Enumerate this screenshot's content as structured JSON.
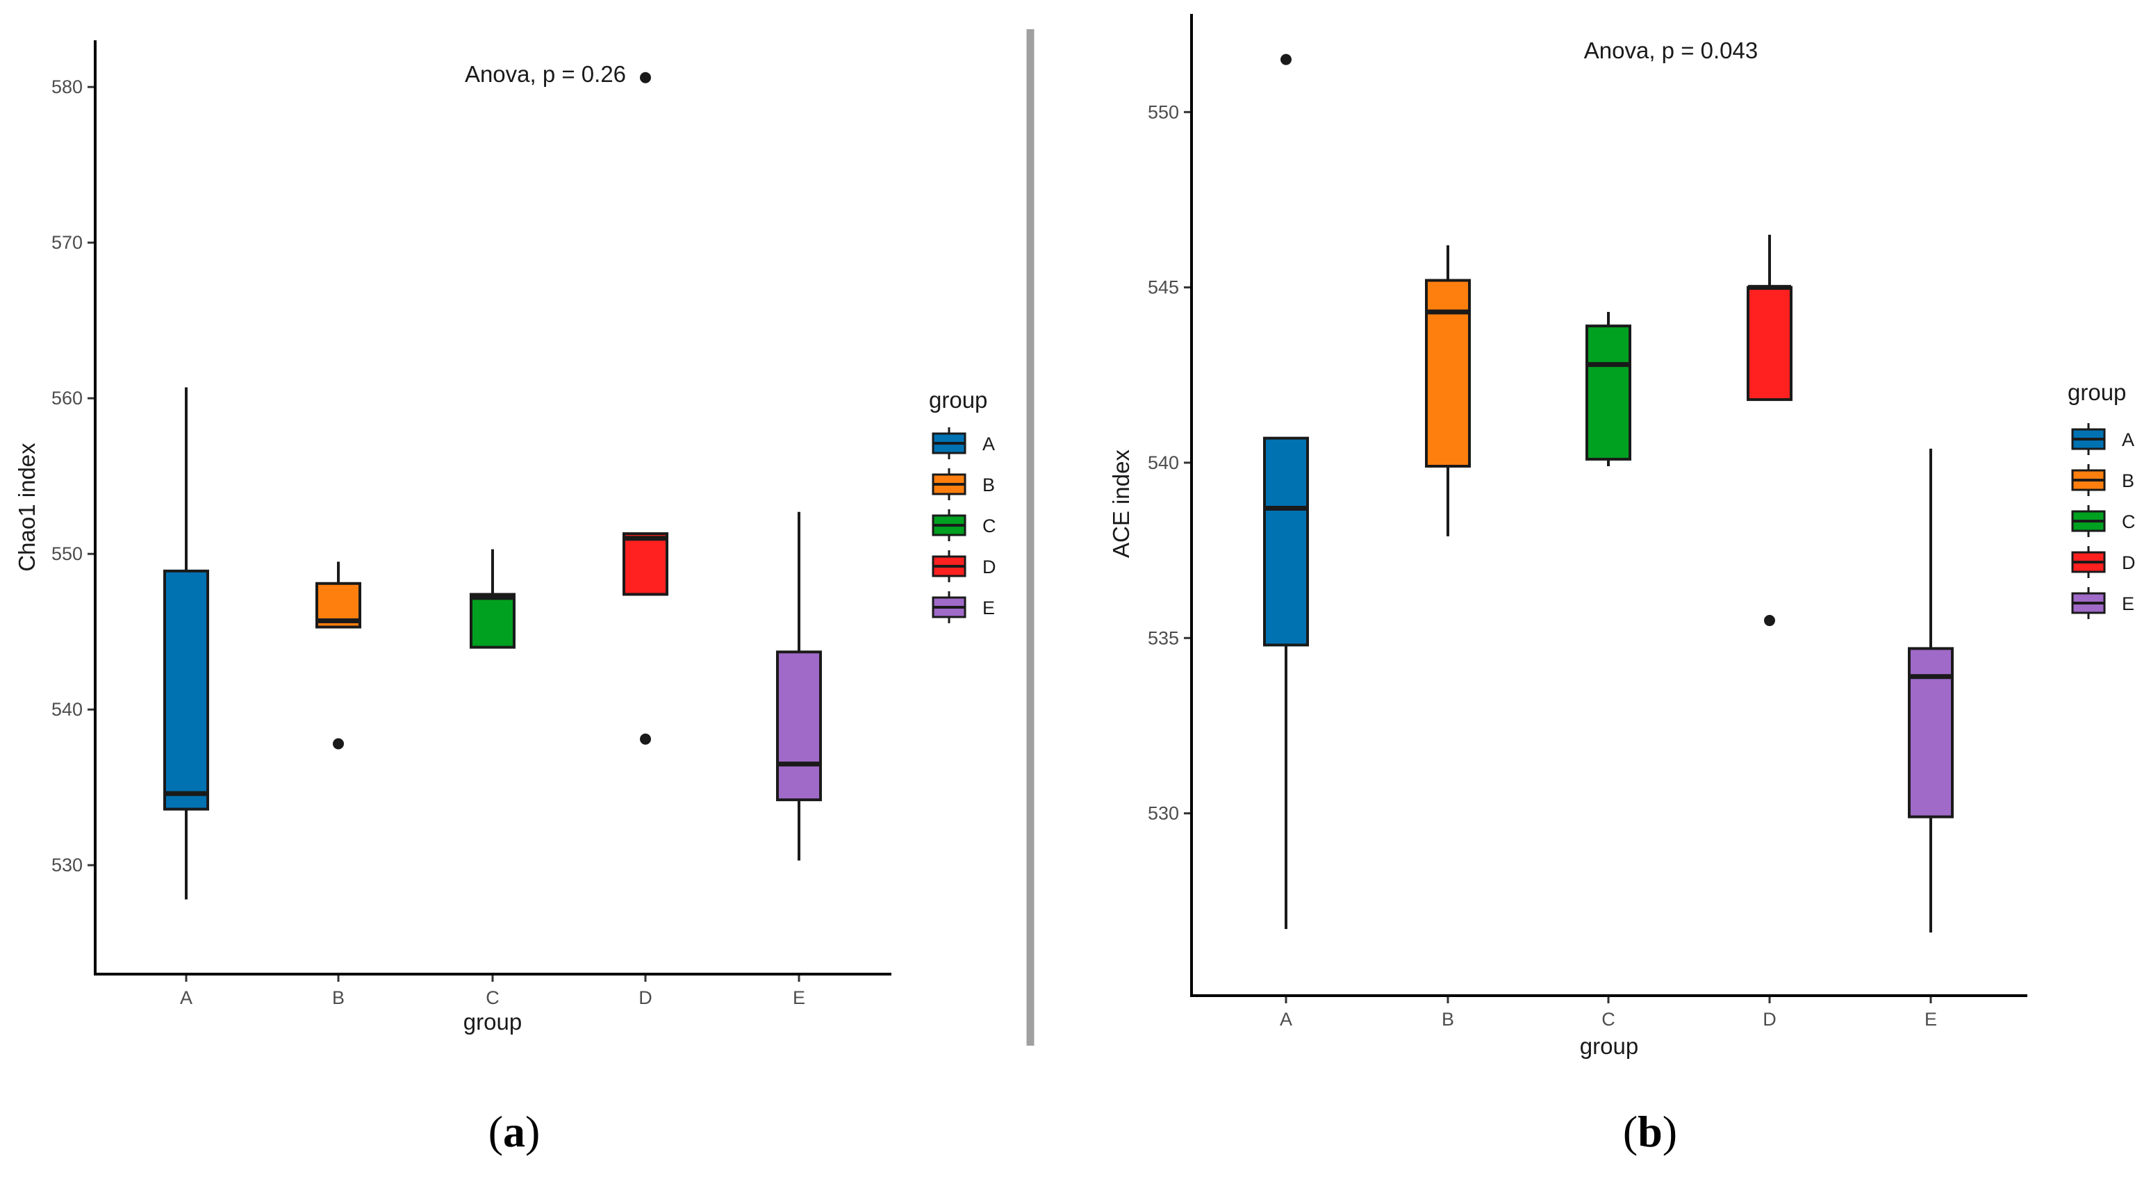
{
  "chart_data": [
    {
      "type": "boxplot",
      "panel_label": "a",
      "annotation": "Anova, p = 0.26",
      "xlabel": "group",
      "ylabel": "Chao1 index",
      "ylim": [
        523,
        583
      ],
      "yticks": [
        530,
        540,
        550,
        560,
        570,
        580
      ],
      "categories": [
        "A",
        "B",
        "C",
        "D",
        "E"
      ],
      "boxes": [
        {
          "group": "A",
          "min": 527.8,
          "q1": 533.6,
          "median": 534.6,
          "q3": 548.9,
          "max": 560.7,
          "outliers": []
        },
        {
          "group": "B",
          "min": 545.3,
          "q1": 545.3,
          "median": 545.7,
          "q3": 548.1,
          "max": 549.5,
          "outliers": [
            537.8
          ]
        },
        {
          "group": "C",
          "min": 544.0,
          "q1": 544.0,
          "median": 547.2,
          "q3": 547.4,
          "max": 550.3,
          "outliers": []
        },
        {
          "group": "D",
          "min": 547.4,
          "q1": 547.4,
          "median": 551.0,
          "q3": 551.3,
          "max": 551.3,
          "outliers": [
            538.1,
            580.6
          ]
        },
        {
          "group": "E",
          "min": 530.3,
          "q1": 534.2,
          "median": 536.5,
          "q3": 543.7,
          "max": 552.7,
          "outliers": []
        }
      ],
      "legend": {
        "title": "group",
        "entries": [
          "A",
          "B",
          "C",
          "D",
          "E"
        ]
      }
    },
    {
      "type": "boxplot",
      "panel_label": "b",
      "annotation": "Anova, p = 0.043",
      "xlabel": "group",
      "ylabel": "ACE index",
      "ylim": [
        524.8,
        552.8
      ],
      "yticks": [
        530,
        535,
        540,
        545,
        550
      ],
      "categories": [
        "A",
        "B",
        "C",
        "D",
        "E"
      ],
      "boxes": [
        {
          "group": "A",
          "min": 526.7,
          "q1": 534.8,
          "median": 538.7,
          "q3": 540.7,
          "max": 540.7,
          "outliers": [
            551.5
          ]
        },
        {
          "group": "B",
          "min": 537.9,
          "q1": 539.9,
          "median": 544.3,
          "q3": 545.2,
          "max": 546.2,
          "outliers": []
        },
        {
          "group": "C",
          "min": 539.9,
          "q1": 540.1,
          "median": 542.8,
          "q3": 543.9,
          "max": 544.3,
          "outliers": []
        },
        {
          "group": "D",
          "min": 541.8,
          "q1": 541.8,
          "median": 545.0,
          "q3": 545.0,
          "max": 546.5,
          "outliers": [
            535.5
          ]
        },
        {
          "group": "E",
          "min": 526.6,
          "q1": 529.9,
          "median": 533.9,
          "q3": 534.7,
          "max": 540.4,
          "outliers": []
        }
      ],
      "legend": {
        "title": "group",
        "entries": [
          "A",
          "B",
          "C",
          "D",
          "E"
        ]
      }
    }
  ],
  "colors": {
    "A": "#0072b2",
    "B": "#ff7f0e",
    "C": "#00a020",
    "D": "#ff2020",
    "E": "#a06ac8"
  },
  "divider_color": "#a0a0a0"
}
